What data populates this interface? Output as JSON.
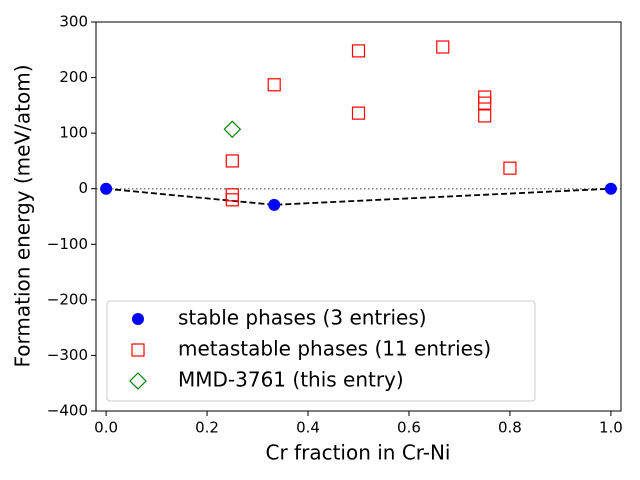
{
  "chart_data": {
    "type": "scatter",
    "x_label": "Cr fraction in Cr-Ni",
    "y_label": "Formation energy (meV/atom)",
    "xlim": [
      -0.02,
      1.02
    ],
    "ylim": [
      -400,
      300
    ],
    "xticks": [
      {
        "value": 0,
        "label": "0.0"
      },
      0.2,
      0.4,
      0.6,
      0.8,
      {
        "value": 1,
        "label": "1.0"
      }
    ],
    "yticks": [
      {
        "value": -400,
        "label": "−400"
      },
      {
        "value": -300,
        "label": "−300"
      },
      {
        "value": -200,
        "label": "−200"
      },
      {
        "value": -100,
        "label": "−100"
      },
      0,
      100,
      200,
      300
    ],
    "zero_line": true,
    "hull_line": true,
    "legend": "lower left",
    "series": [
      {
        "name": "stable phases (3 entries)",
        "color": "#0000ff",
        "marker": "circle",
        "x": [
          0,
          0.333,
          1
        ],
        "values": [
          0,
          -29,
          0
        ]
      },
      {
        "name": "metastable phases (11 entries)",
        "color": "#ff0000",
        "marker": "square",
        "x": [
          0.25,
          0.25,
          0.25,
          0.333,
          0.5,
          0.5,
          0.667,
          0.75,
          0.75,
          0.75,
          0.8
        ],
        "values": [
          50,
          -11,
          -20,
          187,
          248,
          136,
          255,
          165,
          154,
          131,
          37
        ]
      },
      {
        "name": "MMD-3761 (this entry)",
        "color": "#008000",
        "marker": "diamond",
        "x": [
          0.25
        ],
        "values": [
          107
        ]
      }
    ]
  }
}
